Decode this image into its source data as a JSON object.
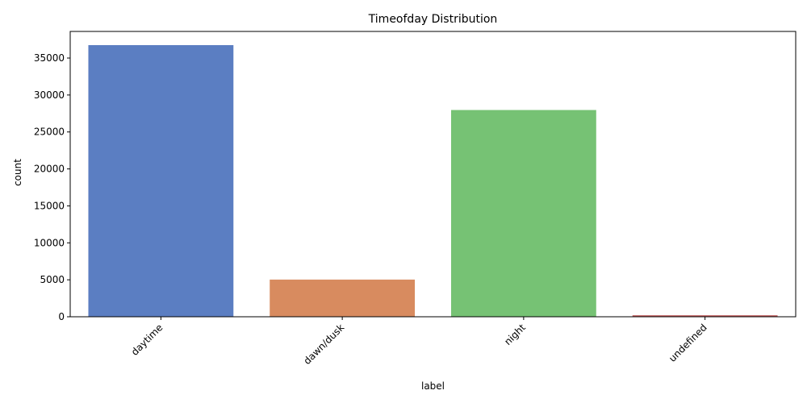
{
  "chart_data": {
    "type": "bar",
    "title": "Timeofday Distribution",
    "xlabel": "label",
    "ylabel": "count",
    "categories": [
      "daytime",
      "dawn/dusk",
      "night",
      "undefined"
    ],
    "values": [
      36750,
      5030,
      27970,
      200
    ],
    "colors": [
      "#5b7ec2",
      "#d88b5f",
      "#76c274",
      "#c05b5b"
    ],
    "ylim": [
      0,
      38600
    ],
    "yticks": [
      0,
      5000,
      10000,
      15000,
      20000,
      25000,
      30000,
      35000
    ],
    "ytick_labels": [
      "0",
      "5000",
      "10000",
      "15000",
      "20000",
      "25000",
      "30000",
      "35000"
    ],
    "grid": false,
    "xtick_rotation": -45
  }
}
